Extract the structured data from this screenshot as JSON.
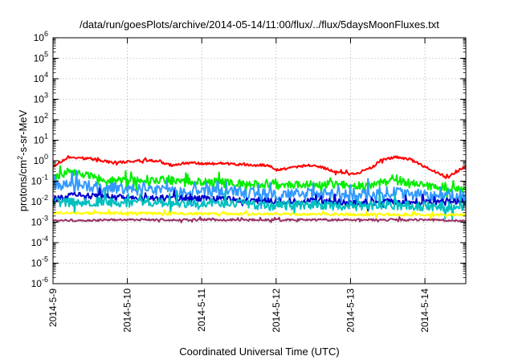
{
  "chart_data": {
    "type": "line",
    "title": "/data/run/goesPlots/archive/2014-05-14/11:00/flux/../flux/5daysMoonFluxes.txt",
    "xlabel": "Coordinated Universal Time (UTC)",
    "ylabel": "protons/cm²-s-sr-MeV",
    "ylabel_parts": {
      "before": "protons/cm",
      "sup": "2",
      "after": "-s-sr-MeV"
    },
    "yscale": "log",
    "ylim_exponents": [
      -6,
      6
    ],
    "y_tick_base": "10",
    "y_tick_exponents": [
      "-6",
      "-5",
      "-4",
      "-3",
      "-2",
      "-1",
      "0",
      "1",
      "2",
      "3",
      "4",
      "5",
      "6"
    ],
    "x_ticks": [
      "2014-5-9",
      "2014-5-10",
      "2014-5-11",
      "2014-5-12",
      "2014-5-13",
      "2014-5-14"
    ],
    "xlim_days": [
      0,
      5.55
    ],
    "grid": true,
    "legend": "none",
    "series": [
      {
        "color": "#ff0000",
        "noise": 0.06,
        "points": [
          [
            0.0,
            0.55
          ],
          [
            0.2,
            1.4
          ],
          [
            0.5,
            1.3
          ],
          [
            0.8,
            0.8
          ],
          [
            1.0,
            0.9
          ],
          [
            1.3,
            1.05
          ],
          [
            1.6,
            0.6
          ],
          [
            1.8,
            0.8
          ],
          [
            2.0,
            0.7
          ],
          [
            2.3,
            0.75
          ],
          [
            2.5,
            0.65
          ],
          [
            2.7,
            0.6
          ],
          [
            2.9,
            0.6
          ],
          [
            3.0,
            0.35
          ],
          [
            3.2,
            0.45
          ],
          [
            3.4,
            0.6
          ],
          [
            3.6,
            0.5
          ],
          [
            3.8,
            0.3
          ],
          [
            4.0,
            0.22
          ],
          [
            4.1,
            0.25
          ],
          [
            4.3,
            0.5
          ],
          [
            4.4,
            1.0
          ],
          [
            4.6,
            1.5
          ],
          [
            4.8,
            1.2
          ],
          [
            4.95,
            0.6
          ],
          [
            5.1,
            0.35
          ],
          [
            5.3,
            0.15
          ],
          [
            5.4,
            0.25
          ],
          [
            5.55,
            0.55
          ]
        ]
      },
      {
        "color": "#00ee00",
        "noise": 0.18,
        "points": [
          [
            0.0,
            0.12
          ],
          [
            0.2,
            0.3
          ],
          [
            0.4,
            0.22
          ],
          [
            0.7,
            0.12
          ],
          [
            1.0,
            0.1
          ],
          [
            1.4,
            0.12
          ],
          [
            1.8,
            0.1
          ],
          [
            2.2,
            0.09
          ],
          [
            2.6,
            0.08
          ],
          [
            3.0,
            0.06
          ],
          [
            3.4,
            0.07
          ],
          [
            3.8,
            0.07
          ],
          [
            4.2,
            0.06
          ],
          [
            4.6,
            0.1
          ],
          [
            4.9,
            0.08
          ],
          [
            5.2,
            0.04
          ],
          [
            5.55,
            0.04
          ]
        ]
      },
      {
        "color": "#3399ff",
        "noise": 0.28,
        "points": [
          [
            0.0,
            0.06
          ],
          [
            0.3,
            0.07
          ],
          [
            0.6,
            0.05
          ],
          [
            1.0,
            0.04
          ],
          [
            1.5,
            0.035
          ],
          [
            2.0,
            0.03
          ],
          [
            2.5,
            0.03
          ],
          [
            3.0,
            0.02
          ],
          [
            3.5,
            0.025
          ],
          [
            4.0,
            0.02
          ],
          [
            4.5,
            0.03
          ],
          [
            5.0,
            0.02
          ],
          [
            5.55,
            0.02
          ]
        ]
      },
      {
        "color": "#0000cc",
        "noise": 0.15,
        "points": [
          [
            0.0,
            0.012
          ],
          [
            0.3,
            0.022
          ],
          [
            0.6,
            0.018
          ],
          [
            1.0,
            0.015
          ],
          [
            1.5,
            0.015
          ],
          [
            2.0,
            0.014
          ],
          [
            2.5,
            0.013
          ],
          [
            3.0,
            0.01
          ],
          [
            3.5,
            0.011
          ],
          [
            4.0,
            0.009
          ],
          [
            4.5,
            0.01
          ],
          [
            5.0,
            0.01
          ],
          [
            5.55,
            0.011
          ]
        ]
      },
      {
        "color": "#00bfbf",
        "noise": 0.22,
        "points": [
          [
            0.0,
            0.009
          ],
          [
            0.5,
            0.01
          ],
          [
            1.0,
            0.009
          ],
          [
            1.5,
            0.009
          ],
          [
            2.0,
            0.008
          ],
          [
            2.5,
            0.008
          ],
          [
            3.0,
            0.006
          ],
          [
            3.5,
            0.007
          ],
          [
            4.0,
            0.006
          ],
          [
            4.5,
            0.007
          ],
          [
            5.0,
            0.006
          ],
          [
            5.55,
            0.006
          ]
        ]
      },
      {
        "color": "#ffff00",
        "noise": 0.06,
        "points": [
          [
            0.0,
            0.0028
          ],
          [
            1.0,
            0.0027
          ],
          [
            2.0,
            0.0026
          ],
          [
            3.0,
            0.0025
          ],
          [
            4.0,
            0.0024
          ],
          [
            5.0,
            0.0023
          ],
          [
            5.55,
            0.0023
          ]
        ]
      },
      {
        "color": "#993366",
        "noise": 0.05,
        "points": [
          [
            0.0,
            0.0012
          ],
          [
            1.0,
            0.0013
          ],
          [
            2.0,
            0.0013
          ],
          [
            3.0,
            0.0013
          ],
          [
            4.0,
            0.0013
          ],
          [
            5.0,
            0.0013
          ],
          [
            5.55,
            0.0012
          ]
        ]
      }
    ]
  }
}
